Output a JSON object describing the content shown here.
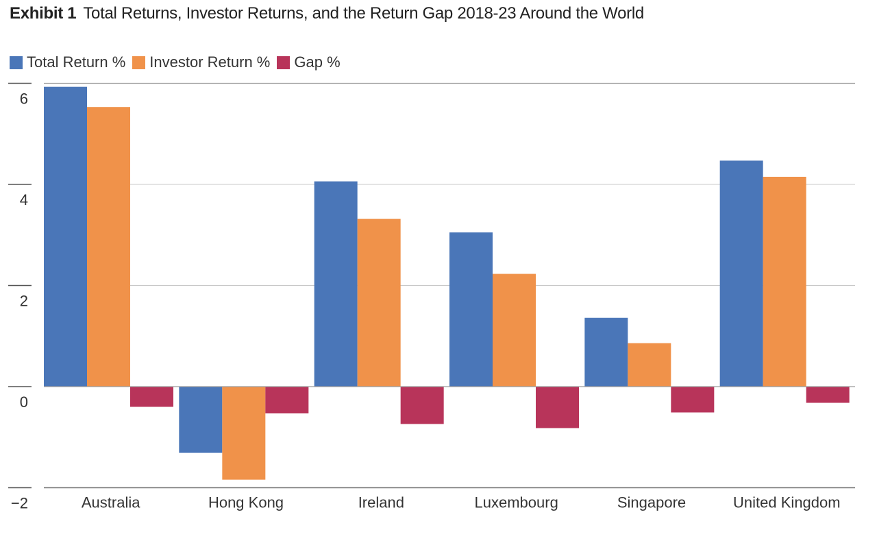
{
  "title": {
    "exhibit": "Exhibit 1",
    "text": "Total Returns, Investor Returns, and the Return Gap 2018-23 Around the World"
  },
  "colors": {
    "total_return": "#4a76b8",
    "investor_return": "#f0924a",
    "gap": "#b8345a",
    "grid": "#c8c8c8"
  },
  "chart_data": {
    "type": "bar",
    "title": "Total Returns, Investor Returns, and the Return Gap 2018-23 Around the World",
    "categories": [
      "Australia",
      "Hong Kong",
      "Ireland",
      "Luxembourg",
      "Singapore",
      "United Kingdom"
    ],
    "series": [
      {
        "name": "Total Return %",
        "values": [
          5.93,
          -1.31,
          4.06,
          3.05,
          1.36,
          4.47
        ]
      },
      {
        "name": "Investor Return %",
        "values": [
          5.53,
          -1.84,
          3.32,
          2.23,
          0.86,
          4.15
        ]
      },
      {
        "name": "Gap %",
        "values": [
          -0.4,
          -0.53,
          -0.74,
          -0.82,
          -0.51,
          -0.32
        ]
      }
    ],
    "y_ticks": [
      6,
      4,
      2,
      0,
      -2
    ],
    "y_tick_labels": [
      "6",
      "4",
      "2",
      "0",
      "−2"
    ],
    "ylim": [
      -2.0,
      6.0
    ],
    "xlabel": "",
    "ylabel": "",
    "grid": true,
    "legend_position": "top-left"
  }
}
